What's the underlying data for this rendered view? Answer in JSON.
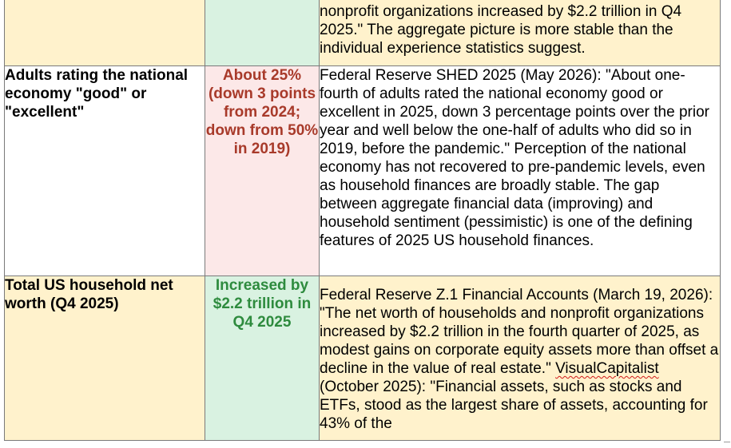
{
  "rows": [
    {
      "metric": "",
      "value": "",
      "source": "nonprofit organizations increased by $2.2 trillion in Q4 2025.\" The aggregate picture is more stable than the individual experience statistics suggest."
    },
    {
      "metric": "Adults rating the national economy \"good\" or \"excellent\"",
      "value": "About 25% (down 3 points from 2024; down from 50% in 2019)",
      "source": "Federal Reserve SHED 2025 (May 2026): \"About one-fourth of adults rated the national economy good or excellent in 2025, down 3 percentage points over the prior year and well below the one-half of adults who did so in 2019, before the pandemic.\" Perception of the national economy has not recovered to pre-pandemic levels, even as household finances are broadly stable. The gap between aggregate financial data (improving) and household sentiment (pessimistic) is one of the defining features of 2025 US household finances."
    },
    {
      "metric": "Total US household net worth (Q4 2025)",
      "value": "Increased by $2.2 trillion in Q4 2025",
      "source_part1": "Federal Reserve Z.1 Financial Accounts (March 19, 2026): \"The net worth of households and nonprofit organizations increased by $2.2 trillion in the fourth quarter of 2025, as modest gains on corporate equity assets more than offset a decline in the value of real estate.\" ",
      "source_flagged": "VisualCapitalist",
      "source_part2": " (October 2025): \"Financial assets, such as stocks and ETFs, stood as the largest share of assets, accounting for 43% of the"
    }
  ],
  "colors": {
    "yellow_cell": "#fff2cc",
    "green_cell": "#d9f2e1",
    "pink_cell": "#fce8e8",
    "value_red": "#a83a2a",
    "value_green": "#2e8b3e",
    "spellcheck": "#d11a1a"
  }
}
